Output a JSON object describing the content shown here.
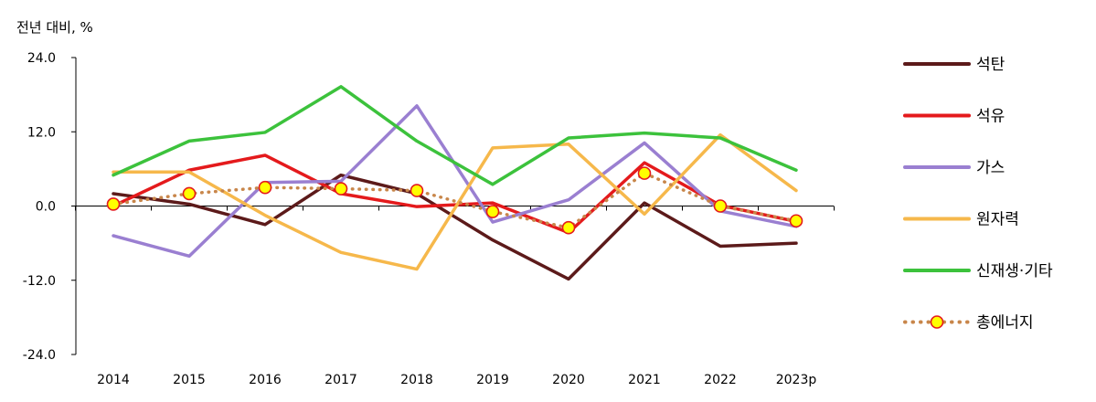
{
  "chart_data": {
    "type": "line",
    "title": "",
    "ylabel": "전년 대비, %",
    "xlabel": "",
    "x": [
      "2014",
      "2015",
      "2016",
      "2017",
      "2018",
      "2019",
      "2020",
      "2021",
      "2022",
      "2023p"
    ],
    "ylim": [
      -24,
      24
    ],
    "yticks": [
      "24.0",
      "12.0",
      "0.0",
      "-12.0",
      "-24.0"
    ],
    "ytick_values": [
      24,
      12,
      0,
      -12,
      -24
    ],
    "grid": false,
    "legend_position": "right",
    "series": [
      {
        "name": "석탄",
        "color": "#5c1a1a",
        "style": "solid",
        "values": [
          2.0,
          0.3,
          -3.0,
          5.0,
          2.0,
          -5.5,
          -11.8,
          0.5,
          -6.5,
          -6.0
        ]
      },
      {
        "name": "석유",
        "color": "#e41a1c",
        "style": "solid",
        "values": [
          0.0,
          5.8,
          8.2,
          2.0,
          -0.1,
          0.5,
          -4.3,
          7.0,
          0.1,
          -2.5
        ]
      },
      {
        "name": "가스",
        "color": "#9a7fd1",
        "style": "solid",
        "values": [
          -4.8,
          -8.1,
          3.8,
          4.0,
          16.2,
          -2.6,
          1.0,
          10.2,
          -0.8,
          -3.3
        ]
      },
      {
        "name": "원자력",
        "color": "#f6b84b",
        "style": "solid",
        "values": [
          5.5,
          5.5,
          -1.5,
          -7.5,
          -10.2,
          9.4,
          10.0,
          -1.3,
          11.5,
          2.5
        ]
      },
      {
        "name": "신재생·기타",
        "color": "#3cc23c",
        "style": "solid",
        "values": [
          5.0,
          10.5,
          11.9,
          19.3,
          10.5,
          3.5,
          11.0,
          11.8,
          11.0,
          5.8
        ]
      },
      {
        "name": "총에너지",
        "color": "#c8864a",
        "style": "dotted",
        "marker": "circle",
        "marker_fill": "#ffff00",
        "marker_edge": "#e41a1c",
        "values": [
          0.3,
          2.0,
          3.0,
          2.8,
          2.5,
          -0.9,
          -3.5,
          5.3,
          0.0,
          -2.4
        ]
      }
    ]
  }
}
